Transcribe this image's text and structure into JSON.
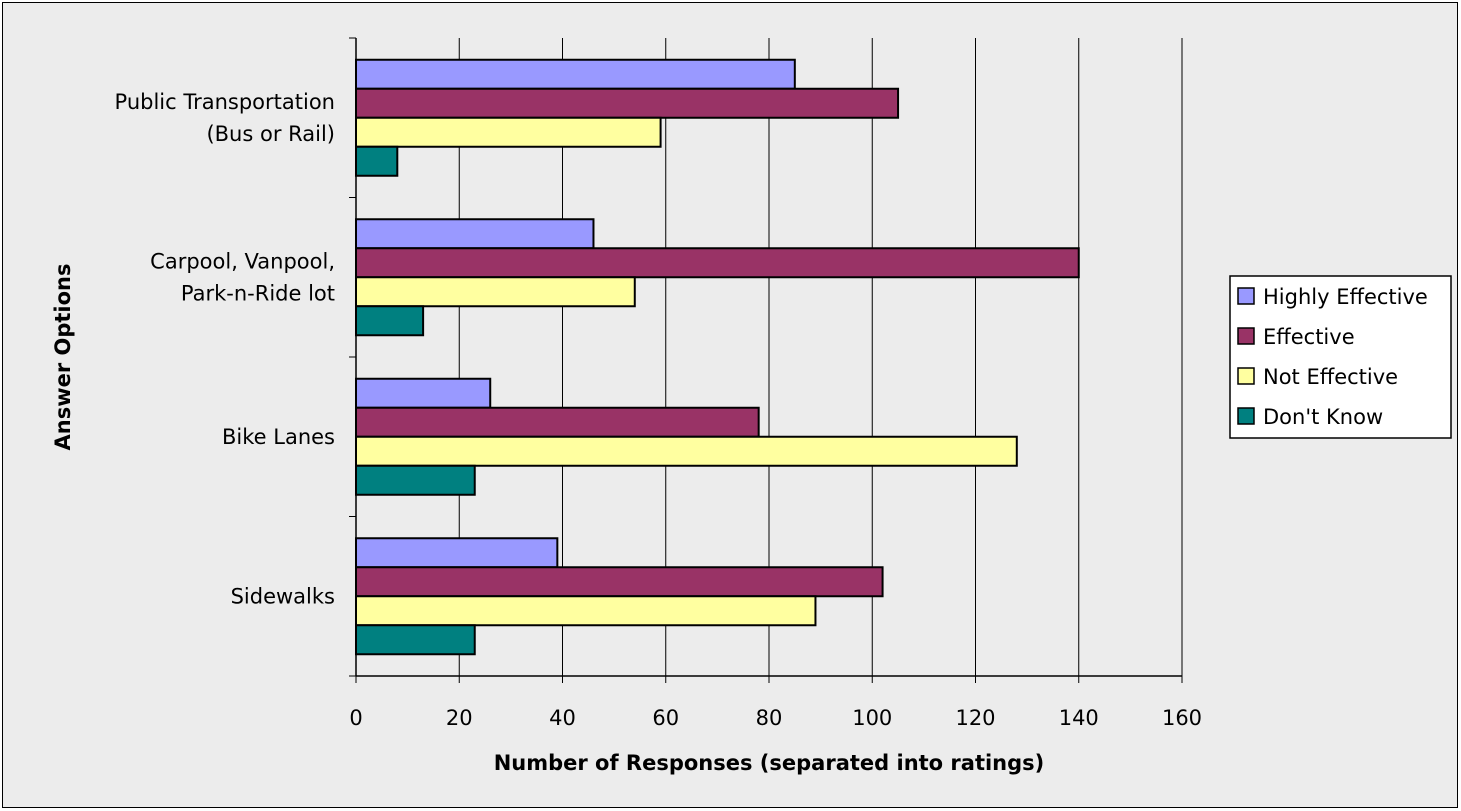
{
  "chart_data": {
    "type": "bar",
    "orientation": "horizontal",
    "title": "",
    "xlabel": "Number of Responses (separated into ratings)",
    "ylabel": "Answer Options",
    "xlim": [
      0,
      160
    ],
    "xticks": [
      0,
      20,
      40,
      60,
      80,
      100,
      120,
      140,
      160
    ],
    "grid": "vertical",
    "legend_position": "right",
    "categories": [
      [
        "Public Transportation",
        "(Bus or Rail)"
      ],
      [
        "Carpool, Vanpool,",
        "Park-n-Ride lot"
      ],
      [
        "Bike Lanes"
      ],
      [
        "Sidewalks"
      ]
    ],
    "series": [
      {
        "name": "Highly Effective",
        "color": "#9999ff",
        "values": [
          85,
          46,
          26,
          39
        ]
      },
      {
        "name": "Effective",
        "color": "#993366",
        "values": [
          105,
          140,
          78,
          102
        ]
      },
      {
        "name": "Not Effective",
        "color": "#ffffa0",
        "values": [
          59,
          54,
          128,
          89
        ]
      },
      {
        "name": "Don't Know",
        "color": "#008080",
        "values": [
          8,
          13,
          23,
          23
        ]
      }
    ]
  }
}
